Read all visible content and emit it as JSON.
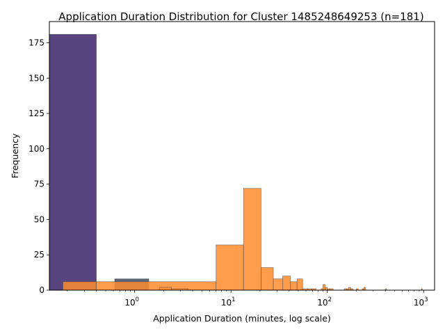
{
  "chart_data": {
    "type": "bar",
    "title": "Application Duration Distribution for Cluster 1485248649253 (n=181)",
    "xlabel": "Application Duration (minutes, log scale)",
    "ylabel": "Frequency",
    "xscale": "log",
    "xlim": [
      0.13,
      1300
    ],
    "ylim": [
      0,
      190
    ],
    "grid": false,
    "legend": "none",
    "x_ticks": [
      {
        "value": 1,
        "base": "10",
        "exp": "0"
      },
      {
        "value": 10,
        "base": "10",
        "exp": "1"
      },
      {
        "value": 100,
        "base": "10",
        "exp": "2"
      },
      {
        "value": 1000,
        "base": "10",
        "exp": "3"
      }
    ],
    "y_ticks": [
      0,
      25,
      50,
      75,
      100,
      125,
      150,
      175
    ],
    "series": [
      {
        "name": "purple histogram",
        "color": "#3b2569",
        "bins": [
          [
            0.12,
            0.4,
            181
          ]
        ]
      },
      {
        "name": "slate histogram",
        "color": "#3a4c6b",
        "bins": [
          [
            0.62,
            1.4,
            8
          ]
        ]
      },
      {
        "name": "orange histogram",
        "color": "#ff8c2e",
        "bins": [
          [
            0.18,
            0.4,
            6
          ],
          [
            0.4,
            7.0,
            6
          ],
          [
            1.8,
            2.4,
            2
          ],
          [
            2.4,
            3.6,
            1
          ],
          [
            7.0,
            13.5,
            32
          ],
          [
            13.5,
            20.5,
            72
          ],
          [
            20.5,
            27.5,
            16
          ],
          [
            27.5,
            34.5,
            8
          ],
          [
            34.5,
            41.5,
            10
          ],
          [
            41.5,
            48.5,
            6
          ],
          [
            48.5,
            55.5,
            8
          ],
          [
            55.5,
            62.5,
            1
          ],
          [
            62.5,
            69.5,
            1
          ],
          [
            69.5,
            76.5,
            1
          ],
          [
            86,
            90,
            1
          ],
          [
            90,
            95,
            4
          ],
          [
            95,
            100,
            2
          ],
          [
            100,
            106,
            1
          ],
          [
            106,
            115,
            1
          ],
          [
            150,
            158,
            1
          ],
          [
            158,
            166,
            1
          ],
          [
            166,
            175,
            2
          ],
          [
            175,
            185,
            1
          ],
          [
            200,
            210,
            1
          ],
          [
            230,
            240,
            1
          ],
          [
            240,
            250,
            2
          ],
          [
            400,
            410,
            1
          ],
          [
            950,
            970,
            1
          ]
        ]
      }
    ]
  }
}
